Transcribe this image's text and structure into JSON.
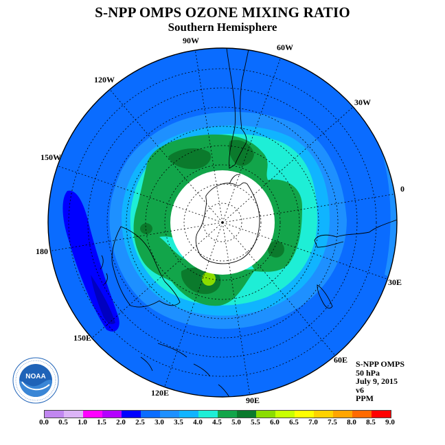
{
  "title": "S-NPP OMPS OZONE MIXING RATIO",
  "subtitle": "Southern Hemisphere",
  "longitude_labels": [
    "90W",
    "60W",
    "30W",
    "0",
    "30E",
    "60E",
    "90E",
    "120E",
    "150E",
    "180",
    "150W",
    "120W"
  ],
  "info": {
    "instrument": "S-NPP OMPS",
    "level": "50 hPa",
    "date": "July 9, 2015",
    "version": "v6",
    "units": "PPM"
  },
  "logo": {
    "text": "NOAA",
    "ring_text": "NATIONAL OCEANIC AND ATMOSPHERIC ADMINISTRATION · U.S. DEPARTMENT OF COMMERCE",
    "color": "#1f63b8"
  },
  "colorbar": {
    "ticks": [
      "0.0",
      "0.5",
      "1.0",
      "1.5",
      "2.0",
      "2.5",
      "3.0",
      "3.5",
      "4.0",
      "4.5",
      "5.0",
      "5.5",
      "6.0",
      "6.5",
      "7.0",
      "7.5",
      "8.0",
      "8.5",
      "9.0"
    ],
    "colors": [
      "#c187f0",
      "#dcb4f7",
      "#ff00ff",
      "#b400ff",
      "#0000ff",
      "#0a6cff",
      "#1e90ff",
      "#10b4ff",
      "#1eeed6",
      "#12a54a",
      "#0b7a2c",
      "#8bdc00",
      "#c8ff00",
      "#ffff00",
      "#ffd200",
      "#ffa500",
      "#ff6a00",
      "#ff0000",
      "#8b5a3c"
    ]
  }
}
